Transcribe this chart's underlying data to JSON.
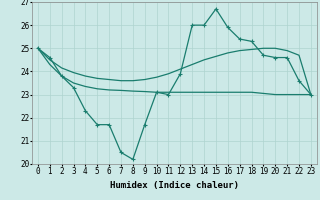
{
  "xlabel": "Humidex (Indice chaleur)",
  "x": [
    0,
    1,
    2,
    3,
    4,
    5,
    6,
    7,
    8,
    9,
    10,
    11,
    12,
    13,
    14,
    15,
    16,
    17,
    18,
    19,
    20,
    21,
    22,
    23
  ],
  "line1": [
    25.0,
    24.6,
    23.8,
    23.3,
    22.3,
    21.7,
    21.7,
    20.5,
    20.2,
    21.7,
    23.1,
    23.0,
    23.9,
    26.0,
    26.0,
    26.7,
    25.9,
    25.4,
    25.3,
    24.7,
    24.6,
    24.6,
    23.6,
    23.0
  ],
  "smooth_line1": [
    25.0,
    24.5,
    24.15,
    23.95,
    23.8,
    23.7,
    23.65,
    23.6,
    23.6,
    23.65,
    23.75,
    23.9,
    24.1,
    24.3,
    24.5,
    24.65,
    24.8,
    24.9,
    24.95,
    25.0,
    25.0,
    24.9,
    24.7,
    23.0
  ],
  "smooth_line2": [
    25.0,
    24.3,
    23.8,
    23.5,
    23.35,
    23.25,
    23.2,
    23.18,
    23.15,
    23.13,
    23.1,
    23.1,
    23.1,
    23.1,
    23.1,
    23.1,
    23.1,
    23.1,
    23.1,
    23.05,
    23.0,
    23.0,
    23.0,
    23.0
  ],
  "ylim": [
    20,
    27
  ],
  "xlim": [
    -0.5,
    23.5
  ],
  "bg_color": "#cce9e7",
  "line_color": "#1a7d6e",
  "grid_color": "#afd4d0",
  "label_fontsize": 6.5,
  "tick_fontsize": 5.5
}
